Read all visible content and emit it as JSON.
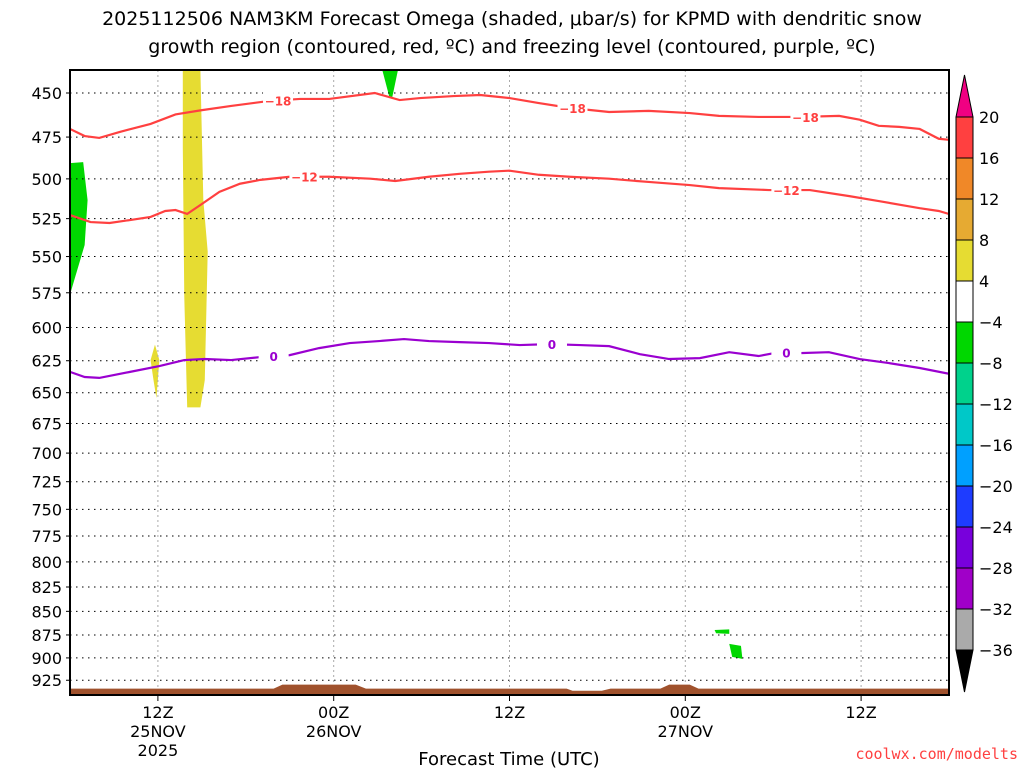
{
  "chart_data": {
    "type": "area",
    "title_line1": "2025112506 NAM3KM Forecast Omega (shaded, μbar/s) for KPMD with dendritic snow",
    "title_line2": "growth region (contoured, red, ºC) and freezing level (contoured, purple, ºC)",
    "xlabel": "Forecast Time (UTC)",
    "ylabel": "",
    "x_units": "forecast hours from 06Z 25NOV2025",
    "xlim": [
      0,
      60
    ],
    "ylim": [
      437,
      943
    ],
    "y_scale": "log",
    "y_inverted": true,
    "grid": true,
    "y_ticks": [
      450,
      475,
      500,
      525,
      550,
      575,
      600,
      625,
      650,
      675,
      700,
      725,
      750,
      775,
      800,
      825,
      850,
      875,
      900,
      925
    ],
    "x_ticks": [
      {
        "hour": 6,
        "lines": [
          "12Z",
          "25NOV",
          "2025"
        ]
      },
      {
        "hour": 18,
        "lines": [
          "00Z",
          "26NOV"
        ]
      },
      {
        "hour": 30,
        "lines": [
          "12Z"
        ]
      },
      {
        "hour": 42,
        "lines": [
          "00Z",
          "27NOV"
        ]
      },
      {
        "hour": 54,
        "lines": [
          "12Z"
        ]
      }
    ],
    "contours": [
      {
        "name": "-18 °C isotherm",
        "label": "−18",
        "color": "#ff4040",
        "label_hours": [
          14.2,
          34.3,
          50.2
        ],
        "points": [
          [
            0,
            470.3
          ],
          [
            1.0,
            474.4
          ],
          [
            2.0,
            475.5
          ],
          [
            3.4,
            472.0
          ],
          [
            5.5,
            467.4
          ],
          [
            7.2,
            462.0
          ],
          [
            8.9,
            459.7
          ],
          [
            11.0,
            457.2
          ],
          [
            13.6,
            454.4
          ],
          [
            15.7,
            453.3
          ],
          [
            17.7,
            453.3
          ],
          [
            20.8,
            450.0
          ],
          [
            22.5,
            453.9
          ],
          [
            23.9,
            452.8
          ],
          [
            26.2,
            451.7
          ],
          [
            28.0,
            451.1
          ],
          [
            30.0,
            452.8
          ],
          [
            32.0,
            455.6
          ],
          [
            34.1,
            458.3
          ],
          [
            36.8,
            460.6
          ],
          [
            39.5,
            460.0
          ],
          [
            42.3,
            461.2
          ],
          [
            44.3,
            462.8
          ],
          [
            47.0,
            463.4
          ],
          [
            49.8,
            463.4
          ],
          [
            52.5,
            462.8
          ],
          [
            53.9,
            465.0
          ],
          [
            55.2,
            468.5
          ],
          [
            56.6,
            469.1
          ],
          [
            58.0,
            470.3
          ],
          [
            59.3,
            476.0
          ],
          [
            60,
            476.6
          ]
        ]
      },
      {
        "name": "-12 °C isotherm",
        "label": "−12",
        "color": "#ff4040",
        "label_hours": [
          16.0,
          48.9
        ],
        "points": [
          [
            0,
            522.7
          ],
          [
            1.4,
            527.2
          ],
          [
            2.7,
            527.8
          ],
          [
            4.1,
            525.9
          ],
          [
            5.5,
            523.9
          ],
          [
            6.5,
            520.1
          ],
          [
            7.2,
            519.5
          ],
          [
            8.0,
            522.0
          ],
          [
            8.9,
            516.3
          ],
          [
            10.2,
            508.0
          ],
          [
            11.6,
            503.0
          ],
          [
            13.0,
            500.6
          ],
          [
            15.0,
            498.7
          ],
          [
            17.7,
            498.7
          ],
          [
            20.5,
            499.9
          ],
          [
            22.2,
            501.3
          ],
          [
            24.5,
            498.7
          ],
          [
            26.6,
            496.9
          ],
          [
            28.6,
            495.6
          ],
          [
            30.0,
            495.0
          ],
          [
            32.0,
            497.5
          ],
          [
            34.1,
            498.7
          ],
          [
            36.8,
            499.9
          ],
          [
            39.5,
            501.9
          ],
          [
            42.3,
            503.8
          ],
          [
            44.3,
            505.7
          ],
          [
            47.7,
            506.9
          ],
          [
            50.5,
            506.9
          ],
          [
            53.2,
            510.7
          ],
          [
            55.2,
            513.8
          ],
          [
            58.0,
            518.3
          ],
          [
            59.3,
            520.1
          ],
          [
            60,
            522.0
          ]
        ]
      },
      {
        "name": "0 °C freezing level",
        "label": "0",
        "color": "#9a00d0",
        "label_hours": [
          13.9,
          32.9,
          48.9
        ],
        "points": [
          [
            0,
            633.6
          ],
          [
            1.0,
            637.6
          ],
          [
            2.0,
            638.3
          ],
          [
            4.1,
            633.6
          ],
          [
            6.1,
            629.1
          ],
          [
            7.8,
            624.5
          ],
          [
            9.2,
            623.7
          ],
          [
            11.0,
            624.5
          ],
          [
            13.0,
            622.2
          ],
          [
            15.0,
            620.7
          ],
          [
            17.0,
            615.4
          ],
          [
            19.1,
            611.6
          ],
          [
            21.1,
            610.1
          ],
          [
            22.8,
            608.6
          ],
          [
            24.5,
            610.1
          ],
          [
            26.6,
            610.9
          ],
          [
            28.6,
            611.6
          ],
          [
            30.7,
            613.1
          ],
          [
            32.7,
            612.4
          ],
          [
            34.8,
            613.1
          ],
          [
            36.8,
            613.9
          ],
          [
            38.9,
            620.0
          ],
          [
            40.9,
            623.7
          ],
          [
            43.0,
            623.0
          ],
          [
            45.0,
            618.5
          ],
          [
            47.0,
            621.4
          ],
          [
            48.4,
            618.5
          ],
          [
            49.8,
            619.2
          ],
          [
            51.8,
            618.5
          ],
          [
            53.9,
            623.7
          ],
          [
            55.9,
            626.8
          ],
          [
            58.0,
            630.6
          ],
          [
            60,
            635.1
          ]
        ]
      }
    ],
    "shaded_regions": [
      {
        "name": "omega -8 to -4 region",
        "range": [
          -8,
          -4
        ],
        "color": "#00d700",
        "polygon": [
          [
            0,
            490.4
          ],
          [
            0.9,
            489.8
          ],
          [
            1.2,
            513.2
          ],
          [
            1.0,
            542.3
          ],
          [
            0.3,
            565.8
          ],
          [
            0,
            576.3
          ]
        ]
      },
      {
        "name": "omega 4 to 8 region",
        "range": [
          4,
          8
        ],
        "color": "#e6dc32",
        "polygon": [
          [
            7.7,
            437
          ],
          [
            8.9,
            437
          ],
          [
            9.1,
            513.2
          ],
          [
            9.4,
            546.7
          ],
          [
            9.2,
            640.1
          ],
          [
            8.9,
            661.8
          ],
          [
            8.0,
            661.8
          ],
          [
            7.8,
            577.7
          ],
          [
            7.7,
            481.6
          ]
        ]
      },
      {
        "name": "omega 4 to 8 region",
        "range": [
          4,
          8
        ],
        "color": "#e6dc32",
        "polygon": [
          [
            5.8,
            612.8
          ],
          [
            6.1,
            624.5
          ],
          [
            5.9,
            654.3
          ],
          [
            5.7,
            640.1
          ],
          [
            5.5,
            624.5
          ]
        ]
      },
      {
        "name": "omega -8 to -4 region",
        "range": [
          -8,
          -4
        ],
        "color": "#00d700",
        "polygon": [
          [
            21.3,
            437
          ],
          [
            22.4,
            437
          ],
          [
            22.0,
            452.2
          ],
          [
            21.8,
            452.2
          ]
        ]
      },
      {
        "name": "omega -8 to -4 region",
        "range": [
          -8,
          -4
        ],
        "color": "#00d700",
        "polygon": [
          [
            44.0,
            869.7
          ],
          [
            45.0,
            869.0
          ],
          [
            45.0,
            873.9
          ],
          [
            44.1,
            873.2
          ]
        ]
      },
      {
        "name": "omega -8 to -4 region",
        "range": [
          -8,
          -4
        ],
        "color": "#00d700",
        "polygon": [
          [
            45.0,
            884.6
          ],
          [
            45.8,
            886.8
          ],
          [
            45.9,
            901.1
          ],
          [
            45.2,
            898.9
          ]
        ]
      }
    ],
    "terrain": {
      "color": "#a0522d",
      "surface_pressure": [
        [
          0,
          934.6
        ],
        [
          13.9,
          934.6
        ],
        [
          14.5,
          930
        ],
        [
          19.5,
          930
        ],
        [
          20.2,
          934.6
        ],
        [
          33.9,
          934.6
        ],
        [
          34.3,
          937
        ],
        [
          36.3,
          937
        ],
        [
          36.9,
          934.6
        ],
        [
          40.3,
          934.6
        ],
        [
          40.9,
          930
        ],
        [
          42.3,
          930
        ],
        [
          42.9,
          934.6
        ],
        [
          60,
          934.6
        ]
      ]
    },
    "colorbar": {
      "labels": [
        "20",
        "16",
        "12",
        "8",
        "4",
        "−4",
        "−8",
        "−12",
        "−16",
        "−20",
        "−24",
        "−28",
        "−32",
        "−36"
      ],
      "top_extend_color": "#f00082",
      "bottom_extend_color": "#000000",
      "colors": [
        "#ff4040",
        "#f08828",
        "#e6aa32",
        "#e6dc32",
        "#ffffff",
        "#00d700",
        "#00d28c",
        "#00c8c8",
        "#00a0ff",
        "#1e3cff",
        "#7800dc",
        "#a000c8",
        "#aaaaaa"
      ]
    },
    "watermark": "coolwx.com/modelts"
  }
}
